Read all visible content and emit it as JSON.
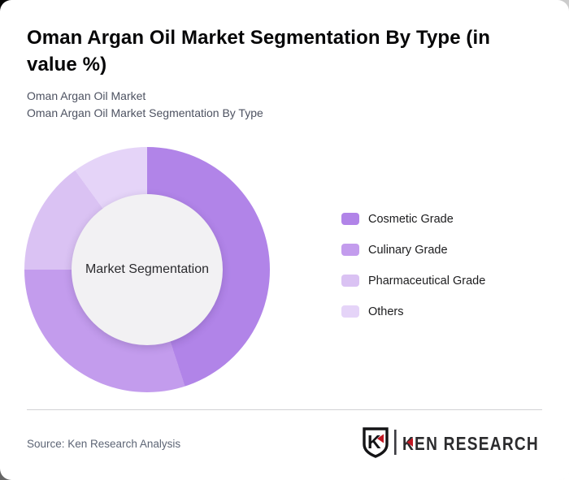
{
  "card": {
    "title": "Oman Argan Oil Market Segmentation By Type (in value %)",
    "subtitle_line1": "Oman Argan Oil Market",
    "subtitle_line2": "Oman Argan Oil Market Segmentation By Type",
    "source": "Source: Ken Research Analysis"
  },
  "chart_data": {
    "type": "pie",
    "variant": "donut",
    "title": "Oman Argan Oil Market Segmentation By Type (in value %)",
    "center_label": "Market Segmentation",
    "categories": [
      "Cosmetic Grade",
      "Culinary Grade",
      "Pharmaceutical Grade",
      "Others"
    ],
    "values": [
      45,
      30,
      15,
      10
    ],
    "unit": "value %",
    "colors": [
      "#b184e8",
      "#c39ced",
      "#dac2f3",
      "#e5d4f8"
    ],
    "hole_color": "#f2f1f3",
    "start_angle_deg": 0,
    "direction": "clockwise",
    "legend_position": "right",
    "data_labels": false
  },
  "logo": {
    "mark": "K",
    "brand": "KEN RESEARCH",
    "accent_color": "#c01722",
    "text_color": "#2c2c2e"
  }
}
